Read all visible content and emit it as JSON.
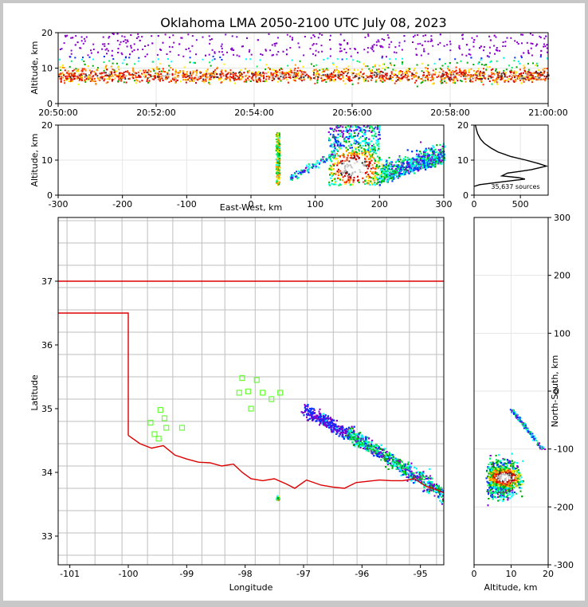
{
  "title": "Oklahoma LMA 2050-2100 UTC July 08, 2023",
  "colors": {
    "border": "#c8c8c8",
    "state_line": "#dd0000",
    "county_line": "#bfbfbf",
    "station": "#66ff33",
    "grid": "#e6e6e6"
  },
  "source_count_label": "35,637 sources",
  "chart_data": [
    {
      "name": "altitude-vs-time",
      "type": "heatmap",
      "ylabel": "Altitude, km",
      "ylim": [
        0,
        20
      ],
      "yticks": [
        "0",
        "10",
        "20"
      ],
      "xticks": [
        "20:50:00",
        "20:52:00",
        "20:54:00",
        "20:56:00",
        "20:58:00",
        "21:00:00"
      ],
      "xlim": [
        "20:50:00",
        "21:00:00"
      ],
      "grid": true
    },
    {
      "name": "altitude-vs-east-west",
      "type": "heatmap",
      "xlabel": "East-West, km",
      "ylabel": "Altitude, km",
      "xlim": [
        -300,
        300
      ],
      "ylim": [
        0,
        20
      ],
      "xticks": [
        "-300",
        "-200",
        "-100",
        "0",
        "100",
        "200",
        "300"
      ],
      "yticks": [
        "0",
        "10",
        "20"
      ],
      "grid": true
    },
    {
      "name": "altitude-histogram",
      "type": "line",
      "xlim": [
        0,
        800
      ],
      "ylim": [
        0,
        20
      ],
      "xticks": [
        "0",
        "500"
      ],
      "yticks": [
        "0",
        "10",
        "20"
      ],
      "annotation": "35,637 sources",
      "profile": [
        [
          0,
          2.5
        ],
        [
          60,
          3
        ],
        [
          300,
          3.8
        ],
        [
          550,
          4.6
        ],
        [
          480,
          5
        ],
        [
          300,
          5.5
        ],
        [
          360,
          6.3
        ],
        [
          500,
          6.8
        ],
        [
          620,
          7.3
        ],
        [
          720,
          7.9
        ],
        [
          780,
          8.3
        ],
        [
          700,
          9
        ],
        [
          560,
          10
        ],
        [
          400,
          11
        ],
        [
          260,
          12.3
        ],
        [
          180,
          13.5
        ],
        [
          110,
          14.8
        ],
        [
          70,
          16
        ],
        [
          40,
          17.5
        ],
        [
          25,
          18.8
        ],
        [
          15,
          20
        ]
      ]
    },
    {
      "name": "plan-view-map",
      "type": "scatter",
      "xlabel": "Longitude",
      "ylabel": "Latitude",
      "xlim": [
        -101.2,
        -94.6
      ],
      "ylim": [
        32.55,
        38.0
      ],
      "xticks": [
        "-101",
        "-100",
        "-99",
        "-98",
        "-97",
        "-96",
        "-95"
      ],
      "yticks": [
        "33",
        "34",
        "35",
        "36",
        "37"
      ],
      "stations": [
        [
          -98.05,
          35.48
        ],
        [
          -97.8,
          35.45
        ],
        [
          -98.1,
          35.25
        ],
        [
          -97.95,
          35.27
        ],
        [
          -97.7,
          35.25
        ],
        [
          -97.55,
          35.15
        ],
        [
          -97.4,
          35.25
        ],
        [
          -97.9,
          35.0
        ],
        [
          -99.45,
          34.98
        ],
        [
          -99.38,
          34.85
        ],
        [
          -99.62,
          34.78
        ],
        [
          -99.35,
          34.7
        ],
        [
          -99.08,
          34.7
        ],
        [
          -99.55,
          34.6
        ],
        [
          -99.48,
          34.53
        ]
      ]
    },
    {
      "name": "north-south-vs-altitude",
      "type": "heatmap",
      "xlabel": "Altitude, km",
      "ylabel": "North-South, km",
      "xlim": [
        0,
        20
      ],
      "ylim": [
        -300,
        300
      ],
      "xticks": [
        "0",
        "10",
        "20"
      ],
      "yticks": [
        "-300",
        "-200",
        "-100",
        "0",
        "100",
        "200",
        "300"
      ],
      "grid": true
    }
  ]
}
